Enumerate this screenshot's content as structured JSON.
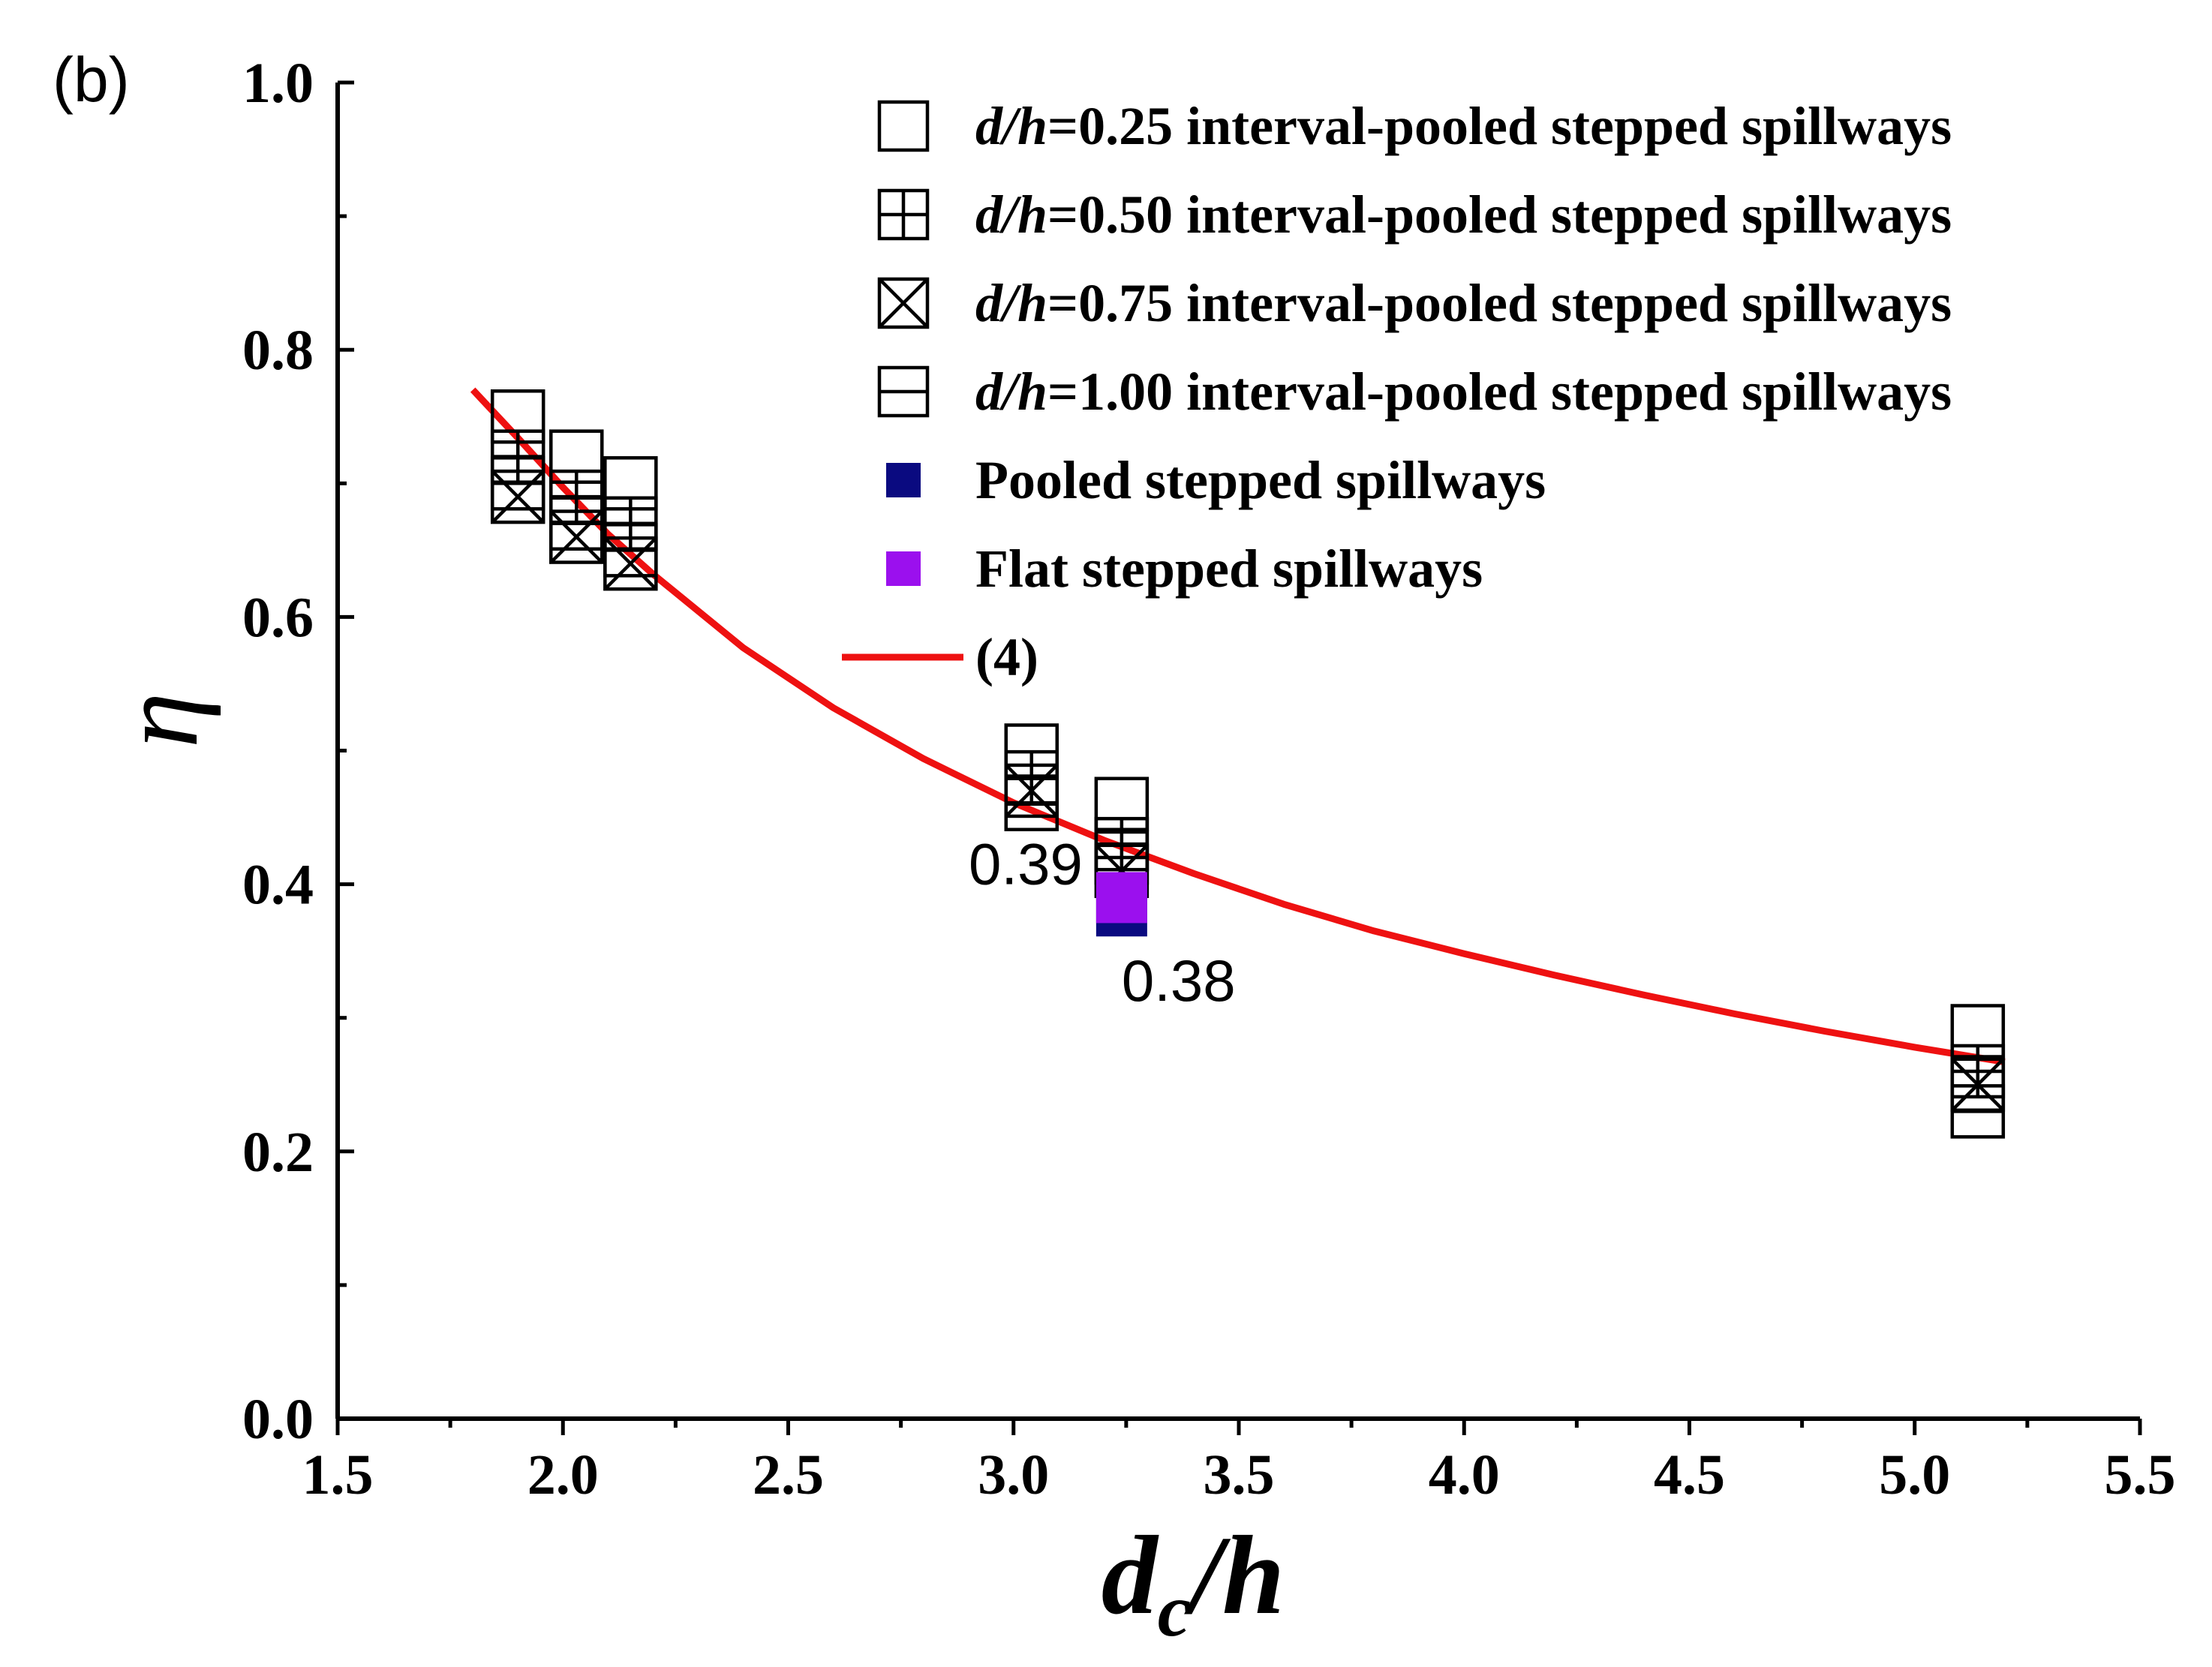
{
  "chart_data": {
    "type": "scatter",
    "panel_label": "(b)",
    "title": "",
    "xlabel_base": "d",
    "xlabel_sub": "c",
    "xlabel_tail": "/h",
    "ylabel": "η",
    "xlim": [
      1.5,
      5.5
    ],
    "ylim": [
      0.0,
      1.0
    ],
    "xticks": [
      "1.5",
      "2.0",
      "2.5",
      "3.0",
      "3.5",
      "4.0",
      "4.5",
      "5.0",
      "5.5"
    ],
    "yticks": [
      "0.0",
      "0.2",
      "0.4",
      "0.6",
      "0.8",
      "1.0"
    ],
    "grid": false,
    "legend_position": "top-right",
    "series": [
      {
        "name_italic": "d/h",
        "name_rest": "=0.25 interval-pooled stepped spillways",
        "marker": "square-open",
        "color": "#000000",
        "x": [
          1.9,
          2.03,
          2.15,
          3.04,
          3.24,
          5.14
        ],
        "y": [
          0.75,
          0.72,
          0.7,
          0.5,
          0.46,
          0.29
        ]
      },
      {
        "name_italic": "d/h",
        "name_rest": "=0.50 interval-pooled stepped spillways",
        "marker": "square-plus",
        "color": "#000000",
        "x": [
          1.9,
          2.03,
          2.15,
          3.04,
          3.24,
          5.14
        ],
        "y": [
          0.72,
          0.69,
          0.67,
          0.48,
          0.43,
          0.26
        ]
      },
      {
        "name_italic": "d/h",
        "name_rest": "=0.75 interval-pooled stepped spillways",
        "marker": "square-x",
        "color": "#000000",
        "x": [
          1.9,
          2.03,
          2.15,
          3.04,
          3.24,
          5.14
        ],
        "y": [
          0.69,
          0.66,
          0.64,
          0.47,
          0.41,
          0.25
        ]
      },
      {
        "name_italic": "d/h",
        "name_rest": "=1.00 interval-pooled stepped spillways",
        "marker": "square-minus",
        "color": "#000000",
        "x": [
          1.9,
          2.03,
          2.15,
          3.04,
          3.24,
          5.14
        ],
        "y": [
          0.7,
          0.67,
          0.65,
          0.46,
          0.42,
          0.23
        ]
      },
      {
        "name": "Pooled stepped spillways",
        "marker": "square-filled",
        "color": "#0a0a80",
        "x": [
          3.24
        ],
        "y": [
          0.38
        ]
      },
      {
        "name": "Flat stepped spillways",
        "marker": "square-filled",
        "color": "#9b10ee",
        "x": [
          3.24
        ],
        "y": [
          0.39
        ]
      },
      {
        "name": "(4)",
        "type": "line",
        "color": "#ee1111",
        "x": [
          1.8,
          1.9,
          2.0,
          2.1,
          2.2,
          2.4,
          2.6,
          2.8,
          3.0,
          3.2,
          3.4,
          3.6,
          3.8,
          4.0,
          4.2,
          4.4,
          4.6,
          4.8,
          5.0,
          5.2
        ],
        "y": [
          0.77,
          0.734,
          0.697,
          0.662,
          0.632,
          0.577,
          0.532,
          0.494,
          0.461,
          0.433,
          0.408,
          0.385,
          0.365,
          0.348,
          0.332,
          0.317,
          0.303,
          0.29,
          0.278,
          0.267
        ]
      }
    ],
    "annotations": [
      {
        "text": "0.39",
        "x": 3.24,
        "y": 0.39,
        "anchor": "left"
      },
      {
        "text": "0.38",
        "x": 3.24,
        "y": 0.38,
        "anchor": "below"
      }
    ]
  }
}
